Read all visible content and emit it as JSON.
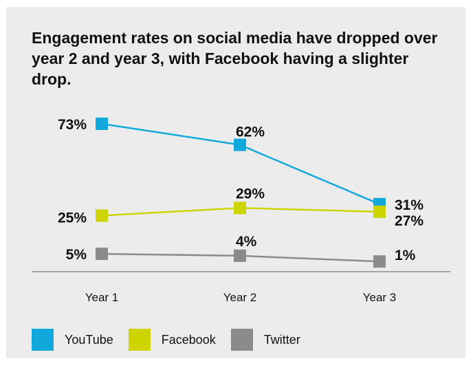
{
  "chart_data": {
    "type": "line",
    "title": "Engagement rates on social media have dropped over year 2 and year 3, with Facebook having a slighter drop.",
    "categories": [
      "Year 1",
      "Year 2",
      "Year 3"
    ],
    "ylim": [
      0,
      80
    ],
    "grid": false,
    "legend": "bottom-left",
    "series": [
      {
        "name": "YouTube",
        "values": [
          73,
          62,
          31
        ],
        "labels": [
          "73%",
          "62%",
          "31%"
        ],
        "color": "#11a9dc"
      },
      {
        "name": "Facebook",
        "values": [
          25,
          29,
          27
        ],
        "labels": [
          "25%",
          "29%",
          "27%"
        ],
        "color": "#cdd400"
      },
      {
        "name": "Twitter",
        "values": [
          5,
          4,
          1
        ],
        "labels": [
          "5%",
          "4%",
          "1%"
        ],
        "color": "#8b8b8d"
      }
    ]
  }
}
